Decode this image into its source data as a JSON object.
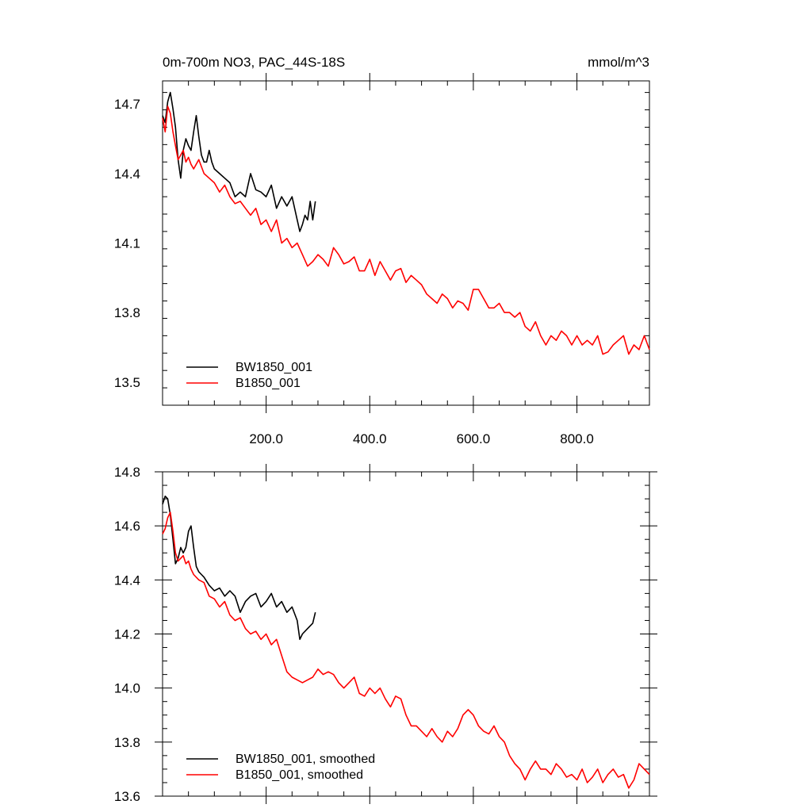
{
  "chart_data": [
    {
      "type": "line",
      "title": "0m-700m NO3, PAC_44S-18S",
      "units": "mmol/m^3",
      "xlim": [
        0,
        940
      ],
      "ylim": [
        13.4,
        14.8
      ],
      "x_ticks": [
        200,
        400,
        600,
        800
      ],
      "x_tick_labels": [
        "200.0",
        "400.0",
        "600.0",
        "800.0"
      ],
      "y_ticks": [
        13.5,
        13.8,
        14.1,
        14.4,
        14.7
      ],
      "y_tick_labels": [
        "13.5",
        "13.8",
        "14.1",
        "14.4",
        "14.7"
      ],
      "legend": {
        "placement": "bottom-left"
      },
      "series": [
        {
          "name": "BW1850_001",
          "color": "#000000",
          "x": [
            0,
            5,
            10,
            15,
            20,
            25,
            30,
            35,
            40,
            45,
            50,
            55,
            60,
            65,
            70,
            75,
            80,
            85,
            90,
            95,
            100,
            110,
            120,
            130,
            140,
            150,
            160,
            170,
            180,
            190,
            200,
            210,
            220,
            230,
            240,
            250,
            260,
            265,
            270,
            275,
            280,
            285,
            290,
            295
          ],
          "y": [
            14.65,
            14.62,
            14.71,
            14.75,
            14.68,
            14.6,
            14.46,
            14.38,
            14.5,
            14.55,
            14.52,
            14.5,
            14.58,
            14.65,
            14.56,
            14.48,
            14.45,
            14.45,
            14.5,
            14.45,
            14.42,
            14.4,
            14.38,
            14.36,
            14.3,
            14.32,
            14.3,
            14.4,
            14.33,
            14.32,
            14.3,
            14.35,
            14.25,
            14.3,
            14.26,
            14.3,
            14.2,
            14.15,
            14.18,
            14.22,
            14.2,
            14.28,
            14.2,
            14.28
          ]
        },
        {
          "name": "B1850_001",
          "color": "#ff0000",
          "x": [
            0,
            5,
            10,
            15,
            20,
            25,
            30,
            35,
            40,
            45,
            50,
            55,
            60,
            70,
            80,
            90,
            100,
            110,
            120,
            130,
            140,
            150,
            160,
            170,
            180,
            190,
            200,
            210,
            220,
            230,
            240,
            250,
            260,
            270,
            280,
            290,
            300,
            310,
            320,
            330,
            340,
            350,
            360,
            370,
            380,
            390,
            400,
            410,
            420,
            430,
            440,
            450,
            460,
            470,
            480,
            490,
            500,
            510,
            520,
            530,
            540,
            550,
            560,
            570,
            580,
            590,
            600,
            610,
            620,
            630,
            640,
            650,
            660,
            670,
            680,
            690,
            700,
            710,
            720,
            730,
            740,
            750,
            760,
            770,
            780,
            790,
            800,
            810,
            820,
            830,
            840,
            850,
            860,
            870,
            880,
            890,
            900,
            910,
            920,
            930,
            940
          ],
          "y": [
            14.64,
            14.58,
            14.69,
            14.66,
            14.58,
            14.52,
            14.46,
            14.48,
            14.5,
            14.45,
            14.47,
            14.44,
            14.42,
            14.46,
            14.4,
            14.38,
            14.36,
            14.32,
            14.35,
            14.3,
            14.27,
            14.28,
            14.25,
            14.22,
            14.25,
            14.18,
            14.2,
            14.15,
            14.2,
            14.1,
            14.12,
            14.08,
            14.1,
            14.05,
            14.0,
            14.02,
            14.05,
            14.03,
            14.0,
            14.08,
            14.05,
            14.01,
            14.02,
            14.04,
            13.98,
            13.98,
            14.03,
            13.96,
            14.02,
            13.98,
            13.94,
            13.98,
            13.99,
            13.93,
            13.96,
            13.94,
            13.92,
            13.88,
            13.86,
            13.84,
            13.88,
            13.86,
            13.82,
            13.85,
            13.84,
            13.81,
            13.9,
            13.9,
            13.86,
            13.82,
            13.82,
            13.84,
            13.8,
            13.8,
            13.78,
            13.8,
            13.74,
            13.72,
            13.76,
            13.7,
            13.66,
            13.7,
            13.68,
            13.72,
            13.7,
            13.66,
            13.7,
            13.66,
            13.68,
            13.66,
            13.7,
            13.62,
            13.63,
            13.66,
            13.68,
            13.7,
            13.62,
            13.66,
            13.64,
            13.7,
            13.64
          ]
        }
      ]
    },
    {
      "type": "line",
      "title": "",
      "xlim": [
        0,
        940
      ],
      "ylim": [
        13.6,
        14.8
      ],
      "y_ticks": [
        13.6,
        13.8,
        14.0,
        14.2,
        14.4,
        14.6,
        14.8
      ],
      "y_tick_labels": [
        "13.6",
        "13.8",
        "14.0",
        "14.2",
        "14.4",
        "14.6",
        "14.8"
      ],
      "legend": {
        "placement": "bottom-left"
      },
      "series": [
        {
          "name": "BW1850_001, smoothed",
          "color": "#000000",
          "x": [
            0,
            5,
            10,
            15,
            20,
            25,
            30,
            35,
            40,
            45,
            50,
            55,
            60,
            65,
            70,
            75,
            80,
            90,
            100,
            110,
            120,
            130,
            140,
            150,
            160,
            170,
            180,
            190,
            200,
            210,
            220,
            230,
            240,
            250,
            260,
            265,
            270,
            280,
            290,
            295
          ],
          "y": [
            14.68,
            14.71,
            14.7,
            14.64,
            14.55,
            14.46,
            14.48,
            14.52,
            14.5,
            14.52,
            14.58,
            14.6,
            14.52,
            14.45,
            14.43,
            14.42,
            14.41,
            14.38,
            14.36,
            14.37,
            14.34,
            14.36,
            14.34,
            14.28,
            14.32,
            14.34,
            14.35,
            14.3,
            14.32,
            14.35,
            14.3,
            14.32,
            14.28,
            14.3,
            14.25,
            14.18,
            14.2,
            14.22,
            14.24,
            14.28
          ]
        },
        {
          "name": "B1850_001, smoothed",
          "color": "#ff0000",
          "x": [
            0,
            5,
            10,
            15,
            20,
            25,
            30,
            35,
            40,
            45,
            50,
            55,
            60,
            70,
            80,
            90,
            100,
            110,
            120,
            130,
            140,
            150,
            160,
            170,
            180,
            190,
            200,
            210,
            220,
            230,
            240,
            250,
            260,
            270,
            280,
            290,
            300,
            310,
            320,
            330,
            340,
            350,
            360,
            370,
            380,
            390,
            400,
            410,
            420,
            430,
            440,
            450,
            460,
            470,
            480,
            490,
            500,
            510,
            520,
            530,
            540,
            550,
            560,
            570,
            580,
            590,
            600,
            610,
            620,
            630,
            640,
            650,
            660,
            670,
            680,
            690,
            700,
            710,
            720,
            730,
            740,
            750,
            760,
            770,
            780,
            790,
            800,
            810,
            820,
            830,
            840,
            850,
            860,
            870,
            880,
            890,
            900,
            910,
            920,
            930,
            940
          ],
          "y": [
            14.57,
            14.59,
            14.63,
            14.65,
            14.58,
            14.5,
            14.47,
            14.48,
            14.49,
            14.46,
            14.47,
            14.44,
            14.42,
            14.4,
            14.39,
            14.34,
            14.33,
            14.3,
            14.32,
            14.27,
            14.25,
            14.26,
            14.22,
            14.2,
            14.21,
            14.18,
            14.2,
            14.16,
            14.18,
            14.12,
            14.06,
            14.04,
            14.03,
            14.02,
            14.03,
            14.04,
            14.07,
            14.05,
            14.06,
            14.05,
            14.02,
            14.0,
            14.02,
            14.04,
            13.98,
            13.97,
            14.0,
            13.98,
            14.0,
            13.96,
            13.93,
            13.97,
            13.96,
            13.9,
            13.86,
            13.86,
            13.84,
            13.82,
            13.85,
            13.82,
            13.8,
            13.84,
            13.82,
            13.85,
            13.9,
            13.92,
            13.9,
            13.86,
            13.84,
            13.83,
            13.86,
            13.82,
            13.8,
            13.75,
            13.72,
            13.7,
            13.66,
            13.7,
            13.73,
            13.7,
            13.7,
            13.68,
            13.72,
            13.7,
            13.67,
            13.68,
            13.66,
            13.7,
            13.65,
            13.67,
            13.7,
            13.65,
            13.68,
            13.7,
            13.67,
            13.68,
            13.63,
            13.66,
            13.72,
            13.7,
            13.68
          ]
        }
      ]
    }
  ]
}
